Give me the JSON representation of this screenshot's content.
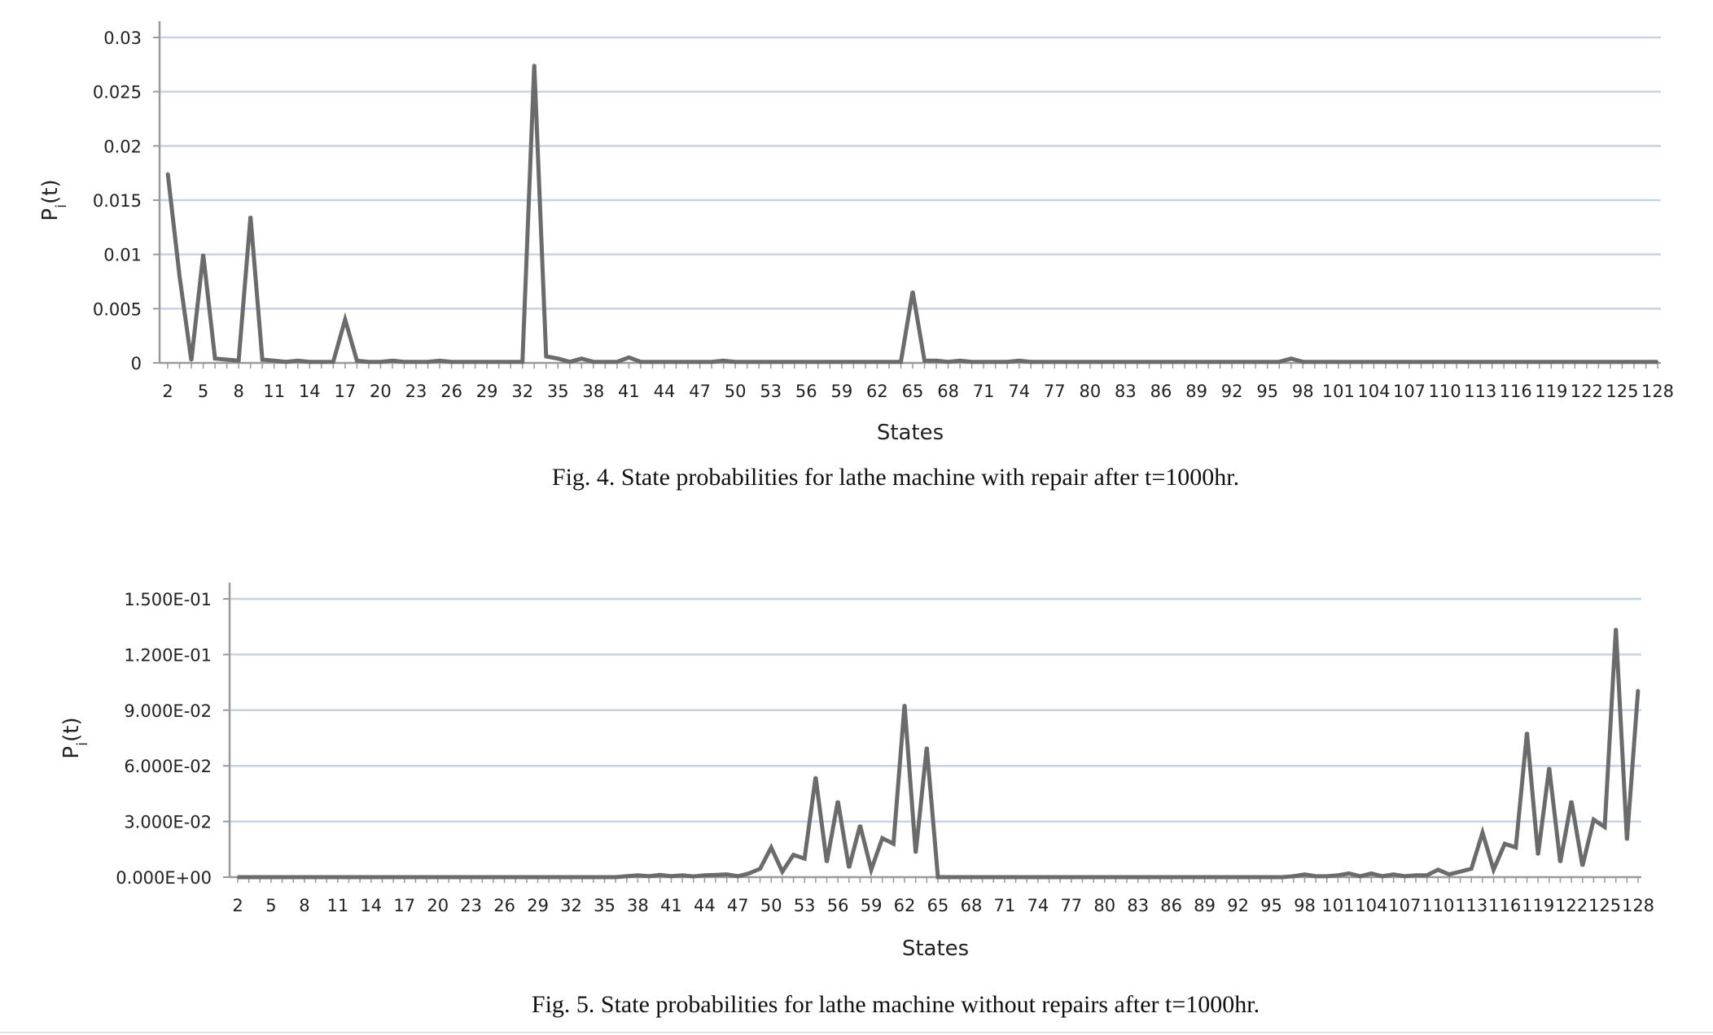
{
  "chart_data": [
    {
      "type": "line",
      "xlabel": "States",
      "ylabel": "P",
      "ylabel_subscript": "i",
      "ylabel_suffix": "(t)",
      "caption": "Fig. 4. State probabilities for lathe machine with repair after t=1000hr.",
      "ylim": [
        0,
        0.03
      ],
      "yticks": [
        "0",
        "0.005",
        "0.01",
        "0.015",
        "0.02",
        "0.025",
        "0.03"
      ],
      "xticks": [
        "2",
        "5",
        "8",
        "11",
        "14",
        "17",
        "20",
        "23",
        "26",
        "29",
        "32",
        "35",
        "38",
        "41",
        "44",
        "47",
        "50",
        "53",
        "56",
        "59",
        "62",
        "65",
        "68",
        "71",
        "74",
        "77",
        "80",
        "83",
        "86",
        "89",
        "92",
        "95",
        "98",
        "101",
        "104",
        "107",
        "110",
        "113",
        "116",
        "119",
        "122",
        "125",
        "128"
      ],
      "grid": true,
      "x_start": 2,
      "x_end": 128,
      "points": [
        [
          2,
          0.0175
        ],
        [
          3,
          0.008
        ],
        [
          4,
          0.0002
        ],
        [
          5,
          0.01
        ],
        [
          6,
          0.0004
        ],
        [
          7,
          0.0003
        ],
        [
          8,
          0.0002
        ],
        [
          9,
          0.0135
        ],
        [
          10,
          0.0003
        ],
        [
          11,
          0.0002
        ],
        [
          12,
          0.0001
        ],
        [
          13,
          0.0002
        ],
        [
          14,
          0.0001
        ],
        [
          15,
          0.0001
        ],
        [
          16,
          0.0001
        ],
        [
          17,
          0.004
        ],
        [
          18,
          0.0002
        ],
        [
          19,
          0.0001
        ],
        [
          20,
          0.0001
        ],
        [
          21,
          0.0002
        ],
        [
          22,
          0.0001
        ],
        [
          23,
          0.0001
        ],
        [
          24,
          0.0001
        ],
        [
          25,
          0.0002
        ],
        [
          26,
          0.0001
        ],
        [
          27,
          0.0001
        ],
        [
          28,
          0.0001
        ],
        [
          29,
          0.0001
        ],
        [
          30,
          0.0001
        ],
        [
          31,
          0.0001
        ],
        [
          32,
          0.0001
        ],
        [
          33,
          0.0275
        ],
        [
          34,
          0.0006
        ],
        [
          35,
          0.0004
        ],
        [
          36,
          0.0001
        ],
        [
          37,
          0.0004
        ],
        [
          38,
          0.0001
        ],
        [
          39,
          0.0001
        ],
        [
          40,
          0.0001
        ],
        [
          41,
          0.0005
        ],
        [
          42,
          0.0001
        ],
        [
          43,
          0.0001
        ],
        [
          44,
          0.0001
        ],
        [
          48,
          0.0001
        ],
        [
          49,
          0.0002
        ],
        [
          50,
          0.0001
        ],
        [
          60,
          0.0001
        ],
        [
          63,
          0.0001
        ],
        [
          64,
          0.0001
        ],
        [
          65,
          0.0066
        ],
        [
          66,
          0.0002
        ],
        [
          67,
          0.0002
        ],
        [
          68,
          0.0001
        ],
        [
          69,
          0.0002
        ],
        [
          70,
          0.0001
        ],
        [
          73,
          0.0001
        ],
        [
          74,
          0.0002
        ],
        [
          75,
          0.0001
        ],
        [
          96,
          0.0001
        ],
        [
          97,
          0.0004
        ],
        [
          98,
          0.0001
        ],
        [
          128,
          0.0001
        ]
      ]
    },
    {
      "type": "line",
      "xlabel": "States",
      "ylabel": "P",
      "ylabel_subscript": "i",
      "ylabel_suffix": "(t)",
      "caption": "Fig. 5. State probabilities for lathe machine without repairs after t=1000hr.",
      "ylim": [
        0,
        0.15
      ],
      "yticks": [
        "0.000E+00",
        "3.000E-02",
        "6.000E-02",
        "9.000E-02",
        "1.200E-01",
        "1.500E-01"
      ],
      "xticks": [
        "2",
        "5",
        "8",
        "11",
        "14",
        "17",
        "20",
        "23",
        "26",
        "29",
        "32",
        "35",
        "38",
        "41",
        "44",
        "47",
        "50",
        "53",
        "56",
        "59",
        "62",
        "65",
        "68",
        "71",
        "74",
        "77",
        "80",
        "83",
        "86",
        "89",
        "92",
        "95",
        "98",
        "101",
        "104",
        "107",
        "110",
        "113",
        "116",
        "119",
        "122",
        "125",
        "128"
      ],
      "grid": true,
      "x_start": 2,
      "x_end": 128,
      "points": [
        [
          2,
          0
        ],
        [
          36,
          0
        ],
        [
          37,
          0.0005
        ],
        [
          38,
          0.001
        ],
        [
          39,
          0.0005
        ],
        [
          40,
          0.0012
        ],
        [
          41,
          0.0005
        ],
        [
          42,
          0.001
        ],
        [
          43,
          0.0004
        ],
        [
          44,
          0.001
        ],
        [
          45,
          0.0012
        ],
        [
          46,
          0.0015
        ],
        [
          47,
          0.0005
        ],
        [
          48,
          0.002
        ],
        [
          49,
          0.0045
        ],
        [
          50,
          0.016
        ],
        [
          51,
          0.003
        ],
        [
          52,
          0.012
        ],
        [
          53,
          0.01
        ],
        [
          54,
          0.054
        ],
        [
          55,
          0.008
        ],
        [
          56,
          0.041
        ],
        [
          57,
          0.005
        ],
        [
          58,
          0.028
        ],
        [
          59,
          0.004
        ],
        [
          60,
          0.021
        ],
        [
          61,
          0.018
        ],
        [
          62,
          0.093
        ],
        [
          63,
          0.013
        ],
        [
          64,
          0.07
        ],
        [
          65,
          0.0
        ],
        [
          66,
          0.0
        ],
        [
          96,
          0.0
        ],
        [
          97,
          0.0005
        ],
        [
          98,
          0.0015
        ],
        [
          99,
          0.0005
        ],
        [
          100,
          0.0005
        ],
        [
          101,
          0.001
        ],
        [
          102,
          0.002
        ],
        [
          103,
          0.0005
        ],
        [
          104,
          0.002
        ],
        [
          105,
          0.0005
        ],
        [
          106,
          0.0015
        ],
        [
          107,
          0.0005
        ],
        [
          108,
          0.001
        ],
        [
          109,
          0.001
        ],
        [
          110,
          0.004
        ],
        [
          111,
          0.0015
        ],
        [
          112,
          0.003
        ],
        [
          113,
          0.0045
        ],
        [
          114,
          0.024
        ],
        [
          115,
          0.004
        ],
        [
          116,
          0.018
        ],
        [
          117,
          0.016
        ],
        [
          118,
          0.078
        ],
        [
          119,
          0.012
        ],
        [
          120,
          0.059
        ],
        [
          121,
          0.008
        ],
        [
          122,
          0.041
        ],
        [
          123,
          0.006
        ],
        [
          124,
          0.031
        ],
        [
          125,
          0.027
        ],
        [
          126,
          0.134
        ],
        [
          127,
          0.02
        ],
        [
          128,
          0.101
        ]
      ]
    }
  ],
  "colors": {
    "line": "#6b6b6b",
    "grid": "#c5d3e8",
    "axis": "#9a9a9a"
  }
}
